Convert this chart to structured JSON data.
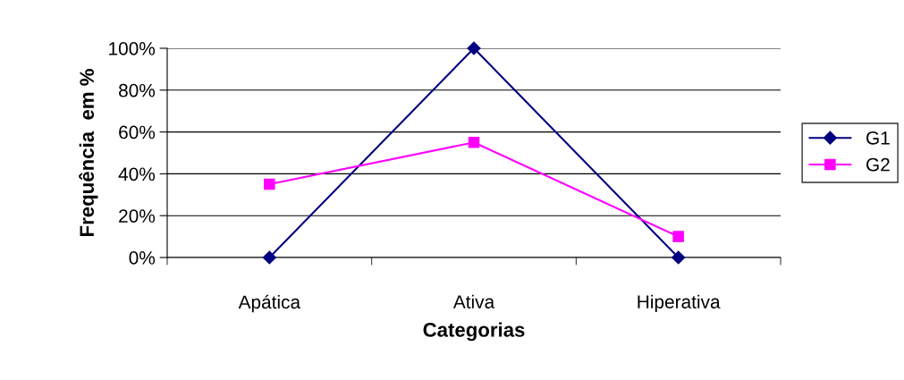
{
  "chart_data": {
    "type": "line",
    "xlabel": "Categorias",
    "ylabel": "Frequência  em %",
    "categories": [
      "Apática",
      "Ativa",
      "Hiperativa"
    ],
    "series": [
      {
        "name": "G1",
        "color": "#000080",
        "values": [
          0,
          100,
          0
        ],
        "marker": "diamond"
      },
      {
        "name": "G2",
        "color": "#ff00ff",
        "values": [
          35,
          55,
          10
        ],
        "marker": "square"
      }
    ],
    "ylim": [
      0,
      100
    ],
    "yticks": [
      {
        "value": 0,
        "label": "0%"
      },
      {
        "value": 20,
        "label": "20%"
      },
      {
        "value": 40,
        "label": "40%"
      },
      {
        "value": 60,
        "label": "60%"
      },
      {
        "value": 80,
        "label": "80%"
      },
      {
        "value": 100,
        "label": "100%"
      }
    ],
    "grid": "y",
    "legend": "right",
    "line_style": "solid"
  }
}
